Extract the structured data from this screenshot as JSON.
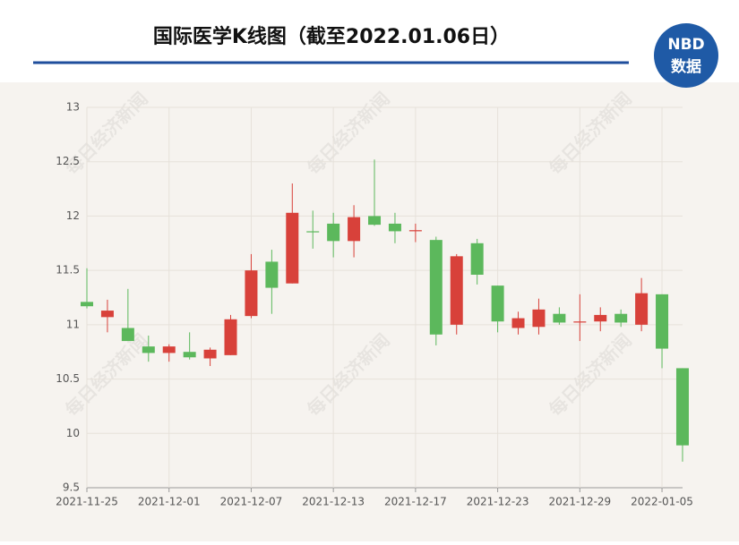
{
  "chart_data": {
    "type": "candlestick",
    "title": "国际医学K线图（截至2022.01.06日）",
    "logo": [
      "NBD",
      "数据"
    ],
    "watermark": "每日经济新闻",
    "categories": [
      "2021-11-25",
      null,
      null,
      null,
      "2021-12-01",
      null,
      null,
      null,
      "2021-12-07",
      null,
      null,
      null,
      "2021-12-13",
      null,
      null,
      null,
      "2021-12-17",
      null,
      null,
      null,
      "2021-12-23",
      null,
      null,
      null,
      "2021-12-29",
      null,
      null,
      null,
      "2022-01-05",
      null
    ],
    "series": [
      {
        "open": [
          11.21,
          11.07,
          10.97,
          10.8,
          10.74,
          10.75,
          10.69,
          10.72,
          11.08,
          11.58,
          11.38,
          11.86,
          11.93,
          11.77,
          12.0,
          11.93,
          11.86,
          11.78,
          11.0,
          11.75,
          11.36,
          10.97,
          10.98,
          11.1,
          11.02,
          11.03,
          11.1,
          11.0,
          11.28,
          10.6
        ],
        "high": [
          11.52,
          11.23,
          11.33,
          10.9,
          10.82,
          10.93,
          10.79,
          11.09,
          11.65,
          11.69,
          12.3,
          12.05,
          12.03,
          12.1,
          12.52,
          12.03,
          11.93,
          11.81,
          11.65,
          11.79,
          11.36,
          11.12,
          11.24,
          11.16,
          11.28,
          11.16,
          11.14,
          11.43,
          11.28,
          10.6
        ],
        "low": [
          11.15,
          10.93,
          10.85,
          10.66,
          10.66,
          10.68,
          10.62,
          10.72,
          11.06,
          11.1,
          11.38,
          11.7,
          11.62,
          11.62,
          11.91,
          11.75,
          11.76,
          10.81,
          10.91,
          11.37,
          10.93,
          10.91,
          10.91,
          11.0,
          10.85,
          10.94,
          10.98,
          10.94,
          10.6,
          9.74
        ],
        "close": [
          11.17,
          11.13,
          10.85,
          10.74,
          10.8,
          10.7,
          10.77,
          11.05,
          11.5,
          11.34,
          12.03,
          11.85,
          11.77,
          11.99,
          11.92,
          11.86,
          11.87,
          10.91,
          11.63,
          11.46,
          11.03,
          11.06,
          11.14,
          11.02,
          11.03,
          11.09,
          11.02,
          11.29,
          10.78,
          9.89
        ]
      }
    ],
    "up_color": "#d8413a",
    "down_color": "#5cb85c",
    "ylim": [
      9.5,
      13
    ],
    "yticks": [
      9.5,
      10,
      10.5,
      11,
      11.5,
      12,
      12.5,
      13
    ],
    "grid": true
  }
}
